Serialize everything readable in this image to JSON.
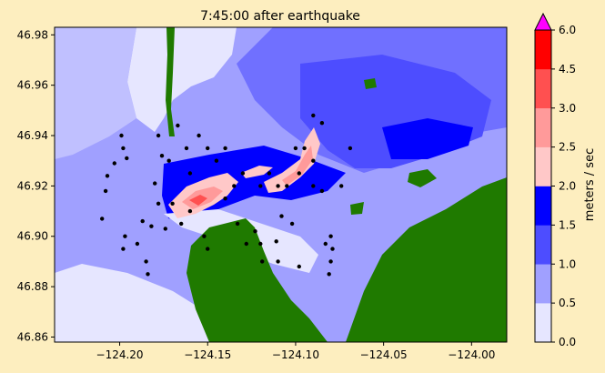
{
  "chart_data": {
    "type": "heatmap",
    "title": "7:45:00 after earthquake",
    "xlabel": "",
    "ylabel": "",
    "xlim": [
      -124.237,
      -123.98
    ],
    "ylim": [
      46.858,
      46.983
    ],
    "x_ticks": [
      -124.2,
      -124.15,
      -124.1,
      -124.05,
      -124.0
    ],
    "x_tick_labels": [
      "−124.20",
      "−124.15",
      "−124.10",
      "−124.05",
      "−124.00"
    ],
    "y_ticks": [
      46.86,
      46.88,
      46.9,
      46.92,
      46.94,
      46.96,
      46.98
    ],
    "y_tick_labels": [
      "46.86",
      "46.88",
      "46.90",
      "46.92",
      "46.94",
      "46.96",
      "46.98"
    ],
    "colorbar": {
      "label": "meters / sec",
      "levels": [
        0.0,
        0.5,
        1.0,
        1.5,
        2.0,
        2.5,
        3.0,
        4.5,
        6.0
      ],
      "level_labels": [
        "0.0",
        "0.5",
        "1.0",
        "1.5",
        "2.0",
        "2.5",
        "3.0",
        "4.5",
        "6.0"
      ],
      "colors": [
        "#e6e6ff",
        "#a0a0ff",
        "#4d4dff",
        "#0000ff",
        "#ffc8c8",
        "#ff9a9a",
        "#ff5050",
        "#ff0000"
      ],
      "extend_max_color": "#ff00ff"
    },
    "land_color": "#1f7a00",
    "gauge_points": [
      [
        -124.199,
        46.94
      ],
      [
        -124.198,
        46.935
      ],
      [
        -124.196,
        46.931
      ],
      [
        -124.203,
        46.929
      ],
      [
        -124.207,
        46.924
      ],
      [
        -124.208,
        46.918
      ],
      [
        -124.21,
        46.907
      ],
      [
        -124.197,
        46.9
      ],
      [
        -124.198,
        46.895
      ],
      [
        -124.19,
        46.897
      ],
      [
        -124.185,
        46.89
      ],
      [
        -124.184,
        46.885
      ],
      [
        -124.178,
        46.94
      ],
      [
        -124.176,
        46.932
      ],
      [
        -124.18,
        46.921
      ],
      [
        -124.178,
        46.913
      ],
      [
        -124.187,
        46.906
      ],
      [
        -124.182,
        46.904
      ],
      [
        -124.174,
        46.903
      ],
      [
        -124.17,
        46.913
      ],
      [
        -124.172,
        46.93
      ],
      [
        -124.167,
        46.944
      ],
      [
        -124.162,
        46.935
      ],
      [
        -124.16,
        46.925
      ],
      [
        -124.155,
        46.94
      ],
      [
        -124.15,
        46.935
      ],
      [
        -124.145,
        46.93
      ],
      [
        -124.14,
        46.935
      ],
      [
        -124.152,
        46.9
      ],
      [
        -124.15,
        46.895
      ],
      [
        -124.133,
        46.905
      ],
      [
        -124.128,
        46.897
      ],
      [
        -124.123,
        46.902
      ],
      [
        -124.12,
        46.897
      ],
      [
        -124.119,
        46.89
      ],
      [
        -124.111,
        46.898
      ],
      [
        -124.11,
        46.89
      ],
      [
        -124.108,
        46.908
      ],
      [
        -124.102,
        46.905
      ],
      [
        -124.098,
        46.888
      ],
      [
        -124.105,
        46.92
      ],
      [
        -124.098,
        46.925
      ],
      [
        -124.09,
        46.92
      ],
      [
        -124.085,
        46.918
      ],
      [
        -124.09,
        46.93
      ],
      [
        -124.095,
        46.935
      ],
      [
        -124.09,
        46.948
      ],
      [
        -124.085,
        46.945
      ],
      [
        -124.1,
        46.935
      ],
      [
        -124.11,
        46.92
      ],
      [
        -124.115,
        46.925
      ],
      [
        -124.12,
        46.92
      ],
      [
        -124.13,
        46.925
      ],
      [
        -124.135,
        46.92
      ],
      [
        -124.14,
        46.915
      ],
      [
        -124.083,
        46.897
      ],
      [
        -124.08,
        46.9
      ],
      [
        -124.079,
        46.895
      ],
      [
        -124.08,
        46.89
      ],
      [
        -124.081,
        46.885
      ],
      [
        -124.069,
        46.935
      ],
      [
        -124.074,
        46.92
      ],
      [
        -124.165,
        46.905
      ],
      [
        -124.16,
        46.91
      ]
    ]
  }
}
